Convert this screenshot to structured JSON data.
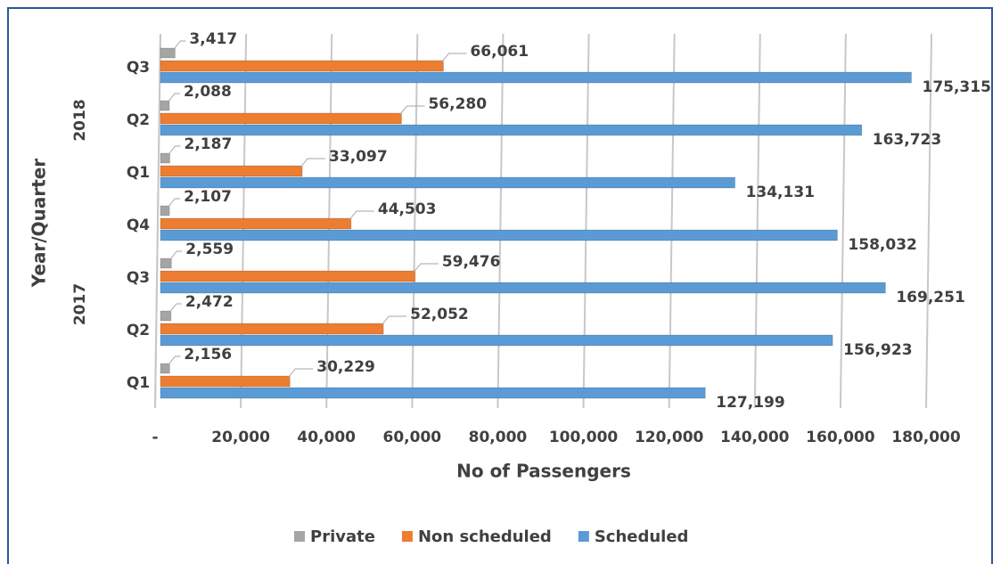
{
  "chart_data": {
    "type": "bar",
    "orientation": "horizontal",
    "x_label": "No of Passengers",
    "y_label": "Year/Quarter",
    "categories": [
      "Q1",
      "Q2",
      "Q3",
      "Q4",
      "Q1",
      "Q2",
      "Q3"
    ],
    "year_groups": [
      {
        "label": "2017",
        "size": 4
      },
      {
        "label": "2018",
        "size": 3
      }
    ],
    "series": [
      {
        "name": "Private",
        "color": "#a5a5a5",
        "values": [
          2156,
          2472,
          2559,
          2107,
          2187,
          2088,
          3417
        ],
        "value_labels": [
          "2,156",
          "2,472",
          "2,559",
          "2,107",
          "2,187",
          "2,088",
          "3,417"
        ]
      },
      {
        "name": "Non scheduled",
        "color": "#ed7d31",
        "values": [
          30229,
          52052,
          59476,
          44503,
          33097,
          56280,
          66061
        ],
        "value_labels": [
          "30,229",
          "52,052",
          "59,476",
          "44,503",
          "33,097",
          "56,280",
          "66,061"
        ]
      },
      {
        "name": "Scheduled",
        "color": "#5b9bd5",
        "values": [
          127199,
          156923,
          169251,
          158032,
          134131,
          163723,
          175315
        ],
        "value_labels": [
          "127,199",
          "156,923",
          "169,251",
          "158,032",
          "134,131",
          "163,723",
          "175,315"
        ]
      }
    ],
    "xlim": [
      0,
      180000
    ],
    "xticks": [
      {
        "value": 0,
        "label": "-"
      },
      {
        "value": 20000,
        "label": "20,000"
      },
      {
        "value": 40000,
        "label": "40,000"
      },
      {
        "value": 60000,
        "label": "60,000"
      },
      {
        "value": 80000,
        "label": "80,000"
      },
      {
        "value": 100000,
        "label": "100,000"
      },
      {
        "value": 120000,
        "label": "120,000"
      },
      {
        "value": 140000,
        "label": "140,000"
      },
      {
        "value": 160000,
        "label": "160,000"
      },
      {
        "value": 180000,
        "label": "180,000"
      }
    ],
    "grid": true,
    "legend": "bottom"
  }
}
